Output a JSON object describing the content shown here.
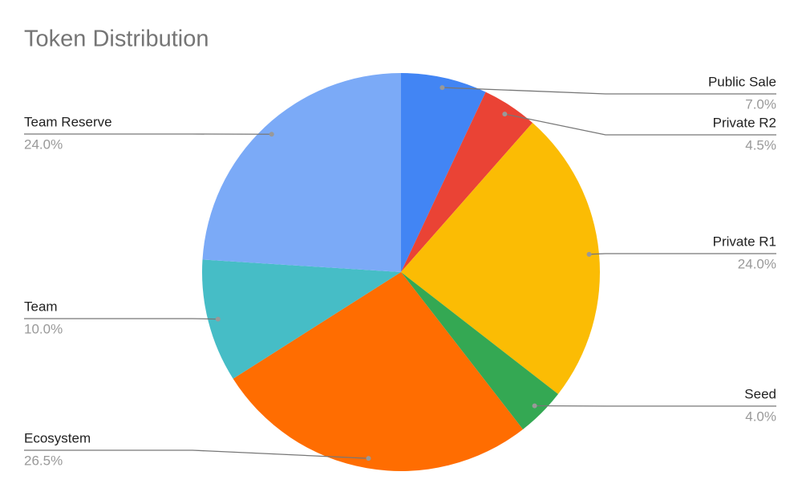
{
  "chart_data": {
    "type": "pie",
    "title": "Token Distribution",
    "categories": [
      "Public Sale",
      "Private R2",
      "Private R1",
      "Seed",
      "Ecosystem",
      "Team",
      "Team Reserve"
    ],
    "values": [
      7.0,
      4.5,
      24.0,
      4.0,
      26.5,
      10.0,
      24.0
    ],
    "value_labels": [
      "7.0%",
      "4.5%",
      "24.0%",
      "4.0%",
      "26.5%",
      "10.0%",
      "24.0%"
    ],
    "colors": [
      "#4285f4",
      "#ea4335",
      "#fbbc04",
      "#34a853",
      "#ff6d01",
      "#46bdc6",
      "#7baaf7"
    ]
  }
}
